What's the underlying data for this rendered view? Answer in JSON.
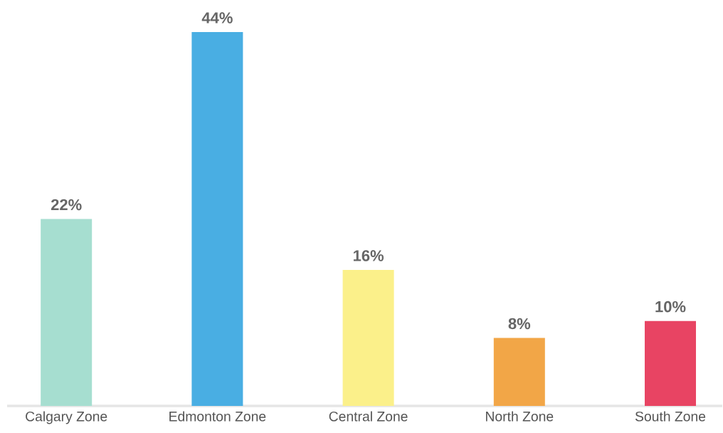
{
  "chart_data": {
    "type": "bar",
    "categories": [
      "Calgary Zone",
      "Edmonton Zone",
      "Central Zone",
      "North Zone",
      "South Zone"
    ],
    "values": [
      22,
      44,
      16,
      8,
      10
    ],
    "colors": [
      "#a6ded0",
      "#49aee3",
      "#fbf08a",
      "#f2a647",
      "#e84463"
    ],
    "value_labels": [
      "22%",
      "44%",
      "16%",
      "8%",
      "10%"
    ]
  }
}
